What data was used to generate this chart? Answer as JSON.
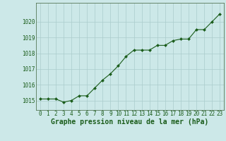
{
  "x": [
    0,
    1,
    2,
    3,
    4,
    5,
    6,
    7,
    8,
    9,
    10,
    11,
    12,
    13,
    14,
    15,
    16,
    17,
    18,
    19,
    20,
    21,
    22,
    23
  ],
  "y": [
    1015.1,
    1015.1,
    1015.1,
    1014.9,
    1015.0,
    1015.3,
    1015.3,
    1015.8,
    1016.3,
    1016.7,
    1017.2,
    1017.8,
    1018.2,
    1018.2,
    1018.2,
    1018.5,
    1018.5,
    1018.8,
    1018.9,
    1018.9,
    1019.5,
    1019.5,
    1020.0,
    1020.5
  ],
  "line_color": "#1a5c1a",
  "marker_color": "#1a5c1a",
  "bg_color": "#cce8e8",
  "grid_color": "#aacccc",
  "xlabel": "Graphe pression niveau de la mer (hPa)",
  "xlabel_color": "#1a5c1a",
  "tick_color": "#1a5c1a",
  "ylim_min": 1014.4,
  "ylim_max": 1021.2,
  "yticks": [
    1015,
    1016,
    1017,
    1018,
    1019,
    1020
  ],
  "xticks": [
    0,
    1,
    2,
    3,
    4,
    5,
    6,
    7,
    8,
    9,
    10,
    11,
    12,
    13,
    14,
    15,
    16,
    17,
    18,
    19,
    20,
    21,
    22,
    23
  ],
  "tick_fontsize": 5.5,
  "xlabel_fontsize": 7
}
